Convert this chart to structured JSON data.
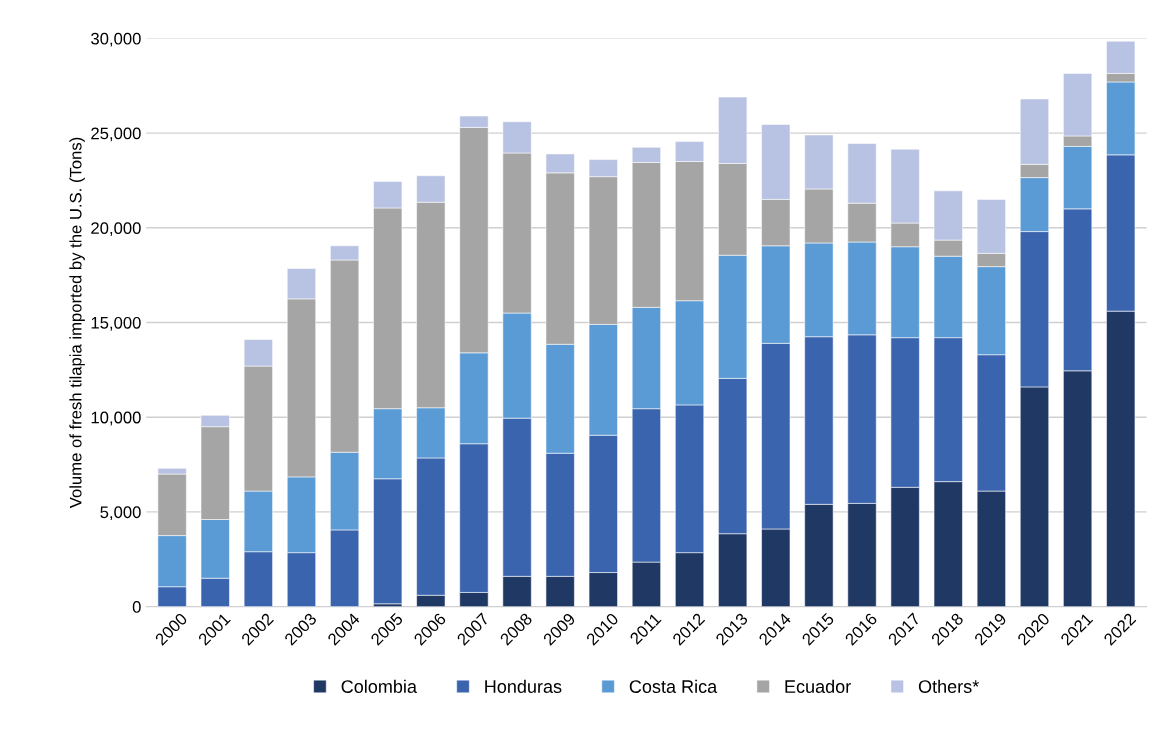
{
  "chart_data": {
    "type": "bar",
    "stacked": true,
    "ylabel": "Volume of fresh tilapia imported by the U.S. (Tons)",
    "categories": [
      "2000",
      "2001",
      "2002",
      "2003",
      "2004",
      "2005",
      "2006",
      "2007",
      "2008",
      "2009",
      "2010",
      "2011",
      "2012",
      "2013",
      "2014",
      "2015",
      "2016",
      "2017",
      "2018",
      "2019",
      "2020",
      "2021",
      "2022"
    ],
    "series": [
      {
        "name": "Colombia",
        "color": "#203864",
        "values": [
          0,
          0,
          0,
          0,
          0,
          150,
          600,
          750,
          1600,
          1600,
          1800,
          2350,
          2850,
          3850,
          4100,
          5400,
          5450,
          6300,
          6600,
          6100,
          11600,
          12450,
          15600
        ]
      },
      {
        "name": "Honduras",
        "color": "#3a64ad",
        "values": [
          1050,
          1500,
          2900,
          2850,
          4050,
          6600,
          7250,
          7850,
          8350,
          6500,
          7250,
          8100,
          7800,
          8200,
          9800,
          8850,
          8900,
          7900,
          7600,
          7200,
          8200,
          8550,
          8250
        ]
      },
      {
        "name": "Costa Rica",
        "color": "#5b9bd5",
        "values": [
          2700,
          3100,
          3200,
          4000,
          4100,
          3700,
          2650,
          4800,
          5550,
          5750,
          5850,
          5350,
          5500,
          6500,
          5150,
          4950,
          4900,
          4800,
          4300,
          4650,
          2850,
          3300,
          3850
        ]
      },
      {
        "name": "Ecuador",
        "color": "#a5a5a5",
        "values": [
          3250,
          4900,
          6600,
          9400,
          10150,
          10600,
          10850,
          11900,
          8450,
          9050,
          7800,
          7650,
          7350,
          4850,
          2450,
          2850,
          2050,
          1250,
          850,
          700,
          700,
          550,
          450
        ]
      },
      {
        "name": "Others*",
        "color": "#b8c2e2",
        "values": [
          300,
          600,
          1400,
          1600,
          750,
          1400,
          1400,
          600,
          1650,
          1000,
          900,
          800,
          1050,
          3500,
          3950,
          2850,
          3150,
          3900,
          2600,
          2850,
          3450,
          3300,
          1700
        ]
      }
    ],
    "ylim": [
      0,
      30000
    ],
    "yticks": [
      {
        "value": 0,
        "label": "0"
      },
      {
        "value": 5000,
        "label": "5,000"
      },
      {
        "value": 10000,
        "label": "10,000"
      },
      {
        "value": 15000,
        "label": "15,000"
      },
      {
        "value": 20000,
        "label": "20,000"
      },
      {
        "value": 25000,
        "label": "25,000"
      },
      {
        "value": 30000,
        "label": "30,000"
      }
    ],
    "grid": "y",
    "legend": "bottom"
  }
}
